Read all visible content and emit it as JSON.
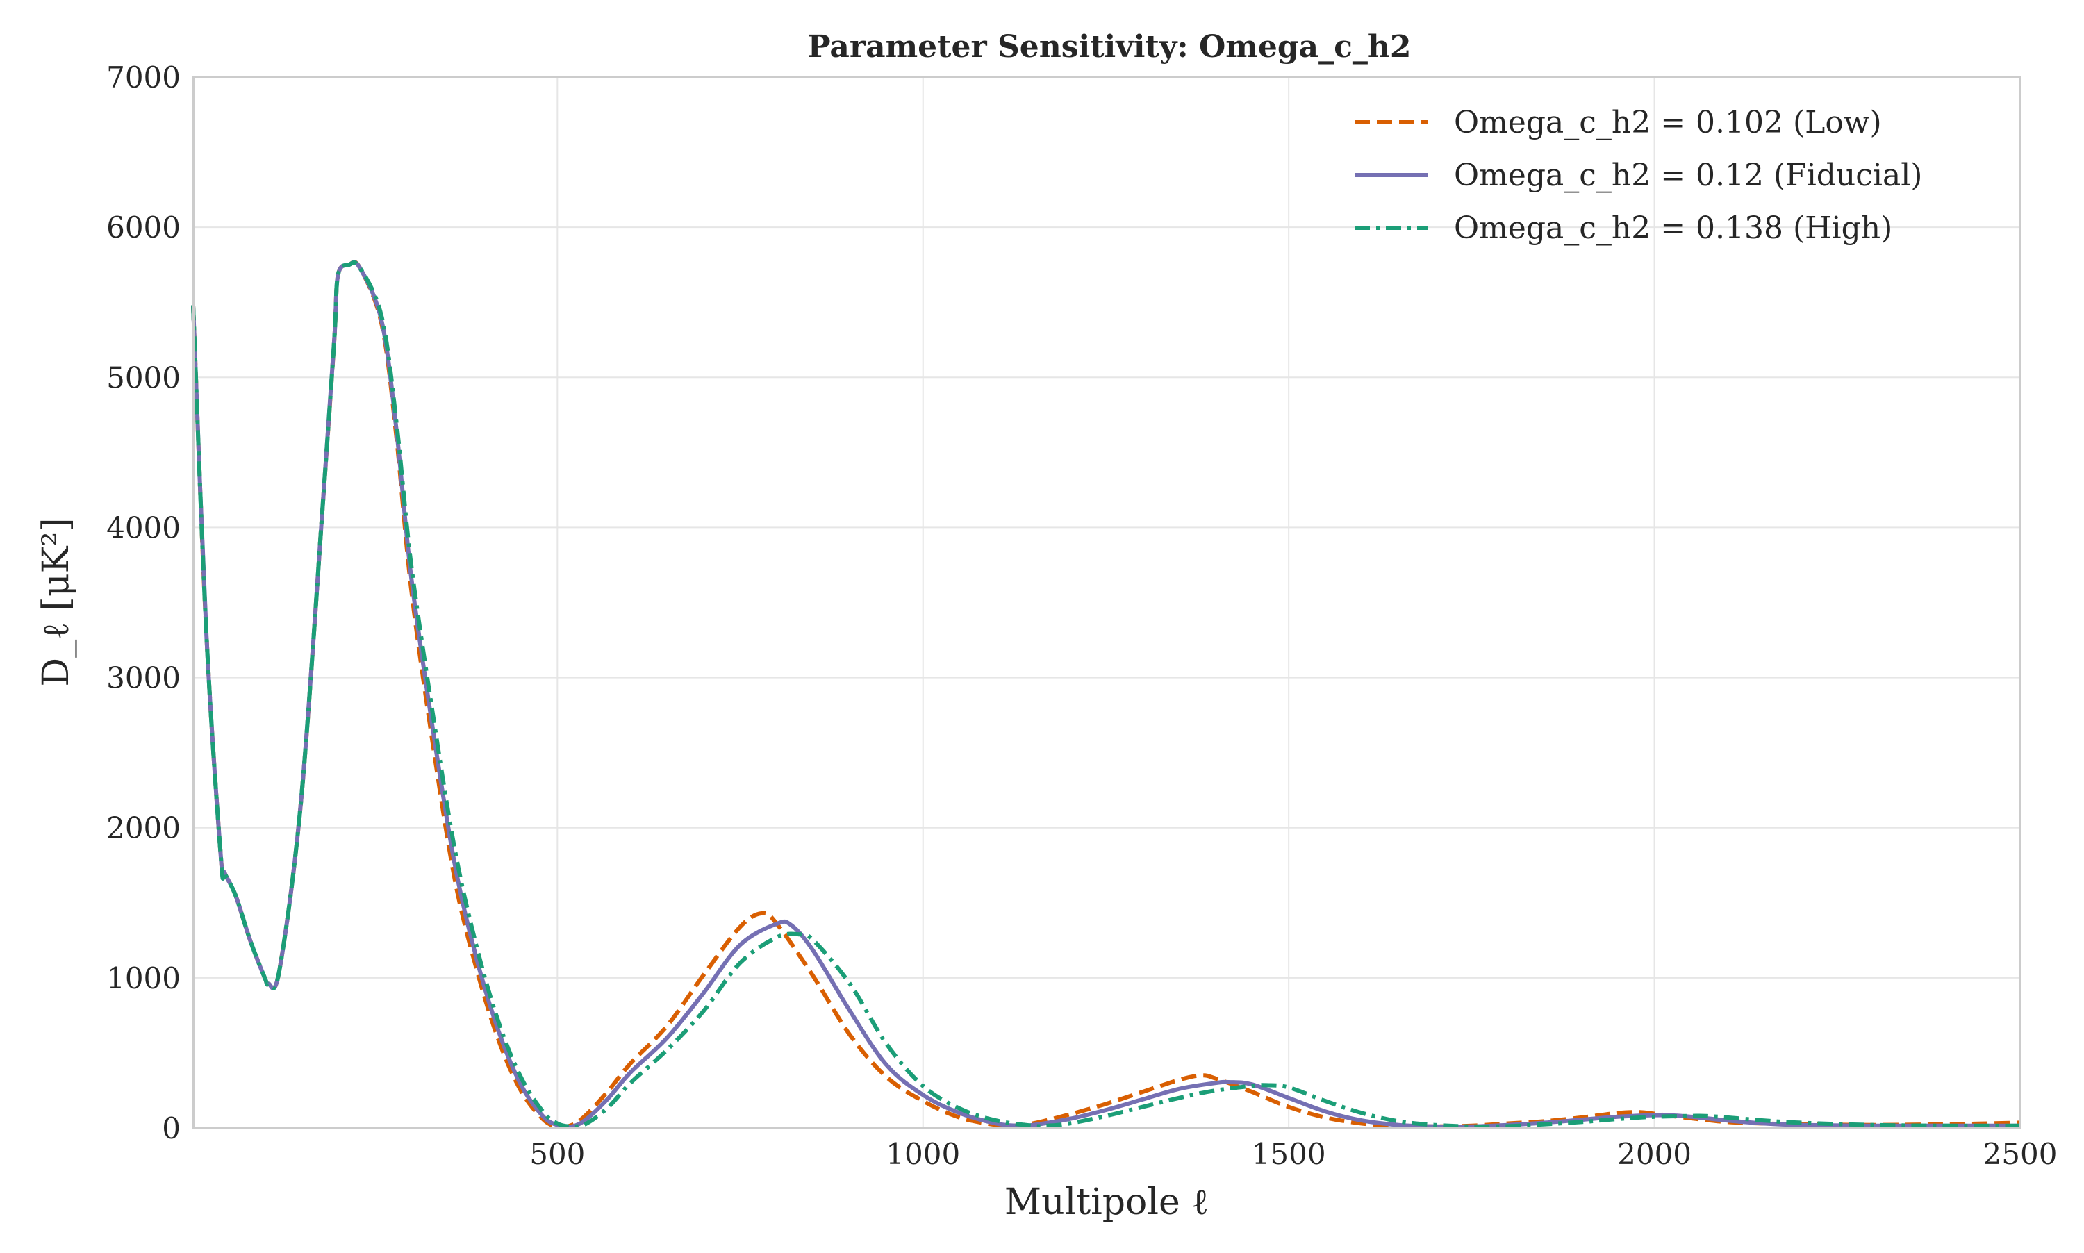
{
  "chart_data": {
    "type": "line",
    "title": "Parameter Sensitivity: Omega_c_h2",
    "xlabel": "Multipole ℓ",
    "ylabel": "D_ℓ [μK²]",
    "xlim": [
      2,
      2500
    ],
    "ylim": [
      0,
      7000
    ],
    "x_ticks": [
      500,
      1000,
      1500,
      2000,
      2500
    ],
    "y_ticks": [
      0,
      1000,
      2000,
      3000,
      4000,
      5000,
      6000,
      7000
    ],
    "grid": true,
    "legend_position": "top-right",
    "series": [
      {
        "name": "Omega_c_h2 = 0.102 (Low)",
        "color": "#d95f02",
        "dash": "dashed",
        "x": [
          2,
          20,
          40,
          45,
          60,
          80,
          100,
          105,
          120,
          150,
          180,
          195,
          200,
          215,
          230,
          260,
          280,
          300,
          330,
          360,
          390,
          420,
          450,
          480,
          500,
          520,
          540,
          570,
          600,
          650,
          700,
          750,
          780,
          800,
          850,
          900,
          950,
          1000,
          1050,
          1100,
          1120,
          1150,
          1200,
          1250,
          1300,
          1350,
          1380,
          1400,
          1450,
          1500,
          1550,
          1600,
          1650,
          1700,
          1750,
          1800,
          1850,
          1900,
          1950,
          1980,
          2000,
          2050,
          2100,
          2150,
          2200,
          2300,
          2400,
          2500
        ],
        "y": [
          5480,
          3300,
          1800,
          1700,
          1550,
          1250,
          1000,
          960,
          1050,
          2200,
          4200,
          5250,
          5680,
          5750,
          5730,
          5350,
          4600,
          3600,
          2550,
          1650,
          1050,
          580,
          250,
          60,
          10,
          20,
          90,
          250,
          430,
          680,
          1020,
          1340,
          1430,
          1360,
          1010,
          620,
          340,
          180,
          70,
          20,
          15,
          30,
          90,
          160,
          240,
          320,
          350,
          330,
          240,
          140,
          70,
          30,
          15,
          10,
          15,
          30,
          45,
          70,
          100,
          105,
          95,
          65,
          40,
          30,
          25,
          20,
          25,
          35
        ]
      },
      {
        "name": "Omega_c_h2 = 0.12 (Fiducial)",
        "color": "#7570b3",
        "dash": "solid",
        "x": [
          2,
          20,
          40,
          45,
          60,
          80,
          100,
          105,
          120,
          150,
          180,
          195,
          200,
          215,
          230,
          260,
          280,
          300,
          330,
          360,
          390,
          420,
          450,
          480,
          500,
          520,
          540,
          570,
          600,
          650,
          700,
          750,
          800,
          820,
          850,
          900,
          950,
          1000,
          1050,
          1100,
          1130,
          1150,
          1200,
          1250,
          1300,
          1350,
          1400,
          1420,
          1450,
          1500,
          1550,
          1600,
          1650,
          1700,
          1750,
          1800,
          1850,
          1900,
          1950,
          2000,
          2020,
          2050,
          2100,
          2150,
          2200,
          2300,
          2400,
          2500
        ],
        "y": [
          5480,
          3300,
          1800,
          1700,
          1550,
          1250,
          1000,
          960,
          1050,
          2200,
          4200,
          5250,
          5680,
          5750,
          5730,
          5370,
          4650,
          3680,
          2650,
          1750,
          1120,
          640,
          290,
          80,
          20,
          10,
          60,
          200,
          370,
          600,
          900,
          1220,
          1360,
          1350,
          1180,
          780,
          420,
          220,
          100,
          30,
          15,
          20,
          60,
          120,
          190,
          260,
          300,
          305,
          290,
          200,
          110,
          50,
          20,
          10,
          10,
          20,
          35,
          55,
          75,
          85,
          85,
          75,
          50,
          30,
          20,
          15,
          15,
          15
        ]
      },
      {
        "name": "Omega_c_h2 = 0.138 (High)",
        "color": "#1b9e77",
        "dash": "dashdot",
        "x": [
          2,
          20,
          40,
          45,
          60,
          80,
          100,
          105,
          120,
          150,
          180,
          195,
          200,
          215,
          230,
          260,
          280,
          300,
          330,
          360,
          390,
          420,
          450,
          480,
          500,
          520,
          540,
          570,
          600,
          650,
          700,
          750,
          800,
          830,
          850,
          900,
          950,
          1000,
          1050,
          1100,
          1150,
          1170,
          1200,
          1250,
          1300,
          1350,
          1400,
          1450,
          1470,
          1500,
          1550,
          1600,
          1650,
          1700,
          1750,
          1800,
          1850,
          1900,
          1950,
          2000,
          2050,
          2070,
          2100,
          2150,
          2200,
          2300,
          2400,
          2500
        ],
        "y": [
          5480,
          3300,
          1800,
          1700,
          1550,
          1250,
          1000,
          960,
          1050,
          2200,
          4200,
          5250,
          5680,
          5750,
          5730,
          5400,
          4700,
          3760,
          2750,
          1850,
          1200,
          700,
          340,
          110,
          30,
          10,
          30,
          140,
          300,
          520,
          780,
          1100,
          1270,
          1290,
          1250,
          960,
          560,
          280,
          130,
          50,
          15,
          15,
          30,
          80,
          140,
          200,
          250,
          280,
          285,
          270,
          180,
          100,
          45,
          20,
          10,
          12,
          25,
          40,
          60,
          75,
          80,
          80,
          70,
          50,
          35,
          20,
          15,
          15
        ]
      }
    ]
  }
}
